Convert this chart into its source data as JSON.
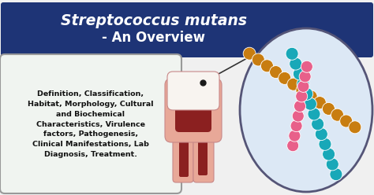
{
  "bg_color": "#f0f0f0",
  "title_bg": "#1e3476",
  "title_line1": "Streptococcus mutans",
  "title_line2": "- An Overview",
  "title_color": "#ffffff",
  "text_box_bg": "#f0f4f0",
  "text_box_border": "#999999",
  "body_text": "Definition, Classification,\nHabitat, Morphology, Cultural\nand Biochemical\nCharacteristics, Virulence\nfactors, Pathogenesis,\nClinical Manifestations, Lab\nDiagnosis, Treatment.",
  "body_text_color": "#111111",
  "oval_bg": "#dce8f5",
  "oval_border": "#555577",
  "chain_orange": "#c87d10",
  "chain_teal": "#18a8b8",
  "chain_pink": "#e8608a",
  "tooth_outer": "#f5e8e0",
  "tooth_pulp": "#e8a898",
  "tooth_root_outer": "#c88888",
  "tooth_dentin": "#8b2020",
  "tooth_enamel": "#f8f4f0"
}
